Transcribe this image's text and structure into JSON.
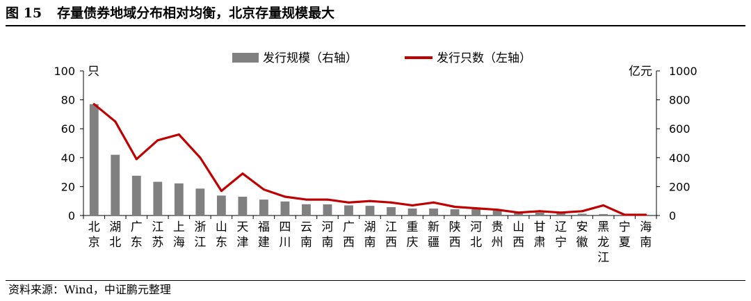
{
  "figure": {
    "number": "图 15",
    "title": "存量债券地域分布相对均衡，北京存量规模最大"
  },
  "source": "资料来源：Wind，中证鹏元整理",
  "chart_data": {
    "type": "bar+line",
    "categories": [
      "北京",
      "湖北",
      "广东",
      "江苏",
      "上海",
      "浙江",
      "山东",
      "天津",
      "福建",
      "四川",
      "云南",
      "河南",
      "广西",
      "湖南",
      "江西",
      "重庆",
      "新疆",
      "陕西",
      "河北",
      "贵州",
      "山西",
      "甘肃",
      "辽宁",
      "安徽",
      "黑龙江",
      "宁夏",
      "海南"
    ],
    "series": [
      {
        "name": "发行规模（右轴）",
        "kind": "bar",
        "axis": "right",
        "color": "#808080",
        "values": [
          770,
          420,
          275,
          233,
          222,
          186,
          138,
          130,
          110,
          97,
          78,
          77,
          70,
          67,
          58,
          48,
          48,
          43,
          43,
          35,
          22,
          20,
          15,
          12,
          10,
          5,
          5
        ]
      },
      {
        "name": "发行只数（左轴）",
        "kind": "line",
        "axis": "left",
        "color": "#C00000",
        "values": [
          77,
          65,
          39,
          52,
          56,
          40,
          17,
          29,
          18,
          13,
          11,
          11,
          9,
          10,
          9,
          7,
          9,
          6,
          5,
          4,
          2,
          3,
          2,
          3,
          7,
          0.5,
          0.5
        ]
      }
    ],
    "left_axis": {
      "unit": "只",
      "min": 0,
      "max": 100,
      "ticks": [
        0,
        20,
        40,
        60,
        80,
        100
      ]
    },
    "right_axis": {
      "unit": "亿元",
      "min": 0,
      "max": 1000,
      "ticks": [
        0,
        200,
        400,
        600,
        800,
        1000
      ]
    },
    "legend_position": "top-center",
    "grid": false
  }
}
